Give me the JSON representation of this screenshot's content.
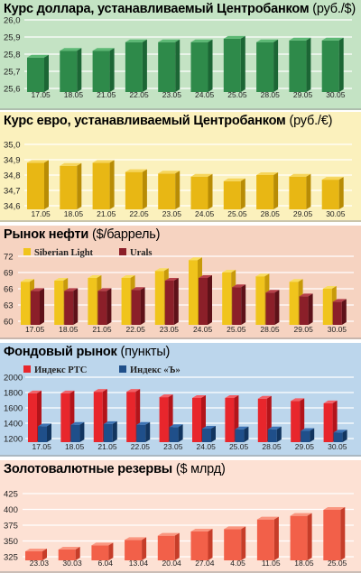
{
  "chart_data": [
    {
      "type": "bar",
      "title": "Курс доллара, устанавливаемый Центробанком",
      "unit": "(руб./$)",
      "categories": [
        "17.05",
        "18.05",
        "21.05",
        "22.05",
        "23.05",
        "24.05",
        "25.05",
        "28.05",
        "29.05",
        "30.05"
      ],
      "values": [
        25.78,
        25.82,
        25.82,
        25.87,
        25.87,
        25.87,
        25.89,
        25.87,
        25.88,
        25.88
      ],
      "yticks": [
        "26,0",
        "25,9",
        "25,8",
        "25,7",
        "25,6"
      ],
      "ylim": [
        25.6,
        26.0
      ],
      "colors": {
        "bg": "#c4e3c4",
        "bar": "#2e8a4a",
        "bar_light": "#5cb874",
        "bar_dark": "#1c6635"
      }
    },
    {
      "type": "bar",
      "title": "Курс евро, устанавливаемый Центробанком",
      "unit": "(руб./€)",
      "categories": [
        "17.05",
        "18.05",
        "21.05",
        "22.05",
        "23.05",
        "24.05",
        "25.05",
        "28.05",
        "29.05",
        "30.05"
      ],
      "values": [
        34.88,
        34.86,
        34.88,
        34.82,
        34.81,
        34.79,
        34.76,
        34.8,
        34.79,
        34.77
      ],
      "yticks": [
        "35,0",
        "34,9",
        "34,8",
        "34,7",
        "34,6"
      ],
      "ylim": [
        34.6,
        35.0
      ],
      "colors": {
        "bg": "#fbf1bd",
        "bar": "#e8b714",
        "bar_light": "#f6d55a",
        "bar_dark": "#b88c05"
      }
    },
    {
      "type": "bar",
      "title": "Рынок нефти",
      "unit": "($/баррель)",
      "categories": [
        "17.05",
        "18.05",
        "21.05",
        "22.05",
        "23.05",
        "24.05",
        "25.05",
        "28.05",
        "29.05",
        "30.05"
      ],
      "series": [
        {
          "name": "Siberian Light",
          "values": [
            67.3,
            67.5,
            68.0,
            68.0,
            69.3,
            71.3,
            69.0,
            68.3,
            67.3,
            66.0
          ]
        },
        {
          "name": "Urals",
          "values": [
            65.6,
            65.6,
            65.6,
            65.8,
            67.5,
            68.0,
            66.3,
            65.3,
            64.6,
            63.6
          ]
        }
      ],
      "yticks": [
        "72",
        "69",
        "66",
        "63",
        "60"
      ],
      "ylim": [
        60,
        72
      ],
      "colors": {
        "bg": "#f6d3c1",
        "s1": "#f0c41c",
        "s1_light": "#f9dc60",
        "s1_dark": "#c79a0a",
        "s2": "#8b1f29",
        "s2_light": "#b6404a",
        "s2_dark": "#5e1118"
      }
    },
    {
      "type": "bar",
      "title": "Фондовый рынок",
      "unit": "(пункты)",
      "categories": [
        "17.05",
        "18.05",
        "21.05",
        "22.05",
        "23.05",
        "24.05",
        "25.05",
        "28.05",
        "29.05",
        "30.05"
      ],
      "series": [
        {
          "name": "Индекс РТС",
          "values": [
            1790,
            1790,
            1810,
            1810,
            1740,
            1730,
            1730,
            1720,
            1690,
            1660
          ]
        },
        {
          "name": "Индекс «Ъ»",
          "values": [
            1360,
            1380,
            1390,
            1380,
            1350,
            1330,
            1320,
            1320,
            1300,
            1280
          ]
        }
      ],
      "yticks": [
        "2000",
        "1800",
        "1600",
        "1400",
        "1200"
      ],
      "ylim": [
        1200,
        2000
      ],
      "colors": {
        "bg": "#bcd6ec",
        "s1": "#e8262c",
        "s1_light": "#f26066",
        "s1_dark": "#b3141a",
        "s2": "#1f4f8a",
        "s2_light": "#3d73b4",
        "s2_dark": "#12355f"
      }
    },
    {
      "type": "bar",
      "title": "Золотовалютные резервы",
      "unit": "($ млрд)",
      "categories": [
        "23.03",
        "30.03",
        "6.04",
        "13.04",
        "20.04",
        "27.04",
        "4.05",
        "11.05",
        "18.05",
        "25.05"
      ],
      "values": [
        329,
        332,
        339,
        348,
        355,
        362,
        366,
        382,
        388,
        398
      ],
      "yticks": [
        "425",
        "400",
        "375",
        "350",
        "325"
      ],
      "ylim": [
        320,
        425
      ],
      "colors": {
        "bg": "#fde1d4",
        "bar": "#f26049",
        "bar_light": "#fa9680",
        "bar_dark": "#c63d29"
      }
    }
  ]
}
